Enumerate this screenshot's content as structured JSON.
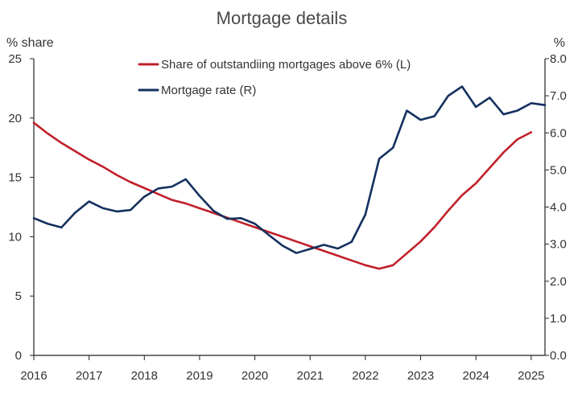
{
  "chart_data": {
    "type": "line",
    "title": "Mortgage details",
    "ylabel": "% share",
    "y2label": "%",
    "xlim": [
      2016,
      2025.25
    ],
    "ylim": [
      0,
      25
    ],
    "y2lim": [
      0,
      8
    ],
    "xticks": [
      2016,
      2017,
      2018,
      2019,
      2020,
      2021,
      2022,
      2023,
      2024,
      2025
    ],
    "yticks": [
      "0",
      "5",
      "10",
      "15",
      "20",
      "25"
    ],
    "y2ticks": [
      "0.0",
      "1.0",
      "2.0",
      "3.0",
      "4.0",
      "5.0",
      "6.0",
      "7.0",
      "8.0"
    ],
    "legend_position": "top-center",
    "series": [
      {
        "name": "Share of outstandiing mortgages above 6% (L)",
        "axis": "left",
        "color": "#c0202a",
        "x": [
          2016,
          2016.25,
          2016.5,
          2016.75,
          2017,
          2017.25,
          2017.5,
          2017.75,
          2018,
          2018.25,
          2018.5,
          2018.75,
          2019,
          2019.25,
          2019.5,
          2019.75,
          2020,
          2020.25,
          2020.5,
          2020.75,
          2021,
          2021.25,
          2021.5,
          2021.75,
          2022,
          2022.25,
          2022.5,
          2022.75,
          2023,
          2023.25,
          2023.5,
          2023.75,
          2024,
          2024.25,
          2024.5,
          2024.75,
          2025
        ],
        "values": [
          19.6,
          18.7,
          17.9,
          17.2,
          16.5,
          15.9,
          15.2,
          14.6,
          14.1,
          13.6,
          13.1,
          12.8,
          12.4,
          12.0,
          11.6,
          11.2,
          10.8,
          10.4,
          10.0,
          9.6,
          9.2,
          8.8,
          8.4,
          8.0,
          7.6,
          7.3,
          7.6,
          8.6,
          9.6,
          10.8,
          12.2,
          13.5,
          14.5,
          15.8,
          17.1,
          18.2,
          18.8
        ]
      },
      {
        "name": "Mortgage rate (R)",
        "axis": "right",
        "color": "#13305e",
        "x": [
          2016,
          2016.25,
          2016.5,
          2016.75,
          2017,
          2017.25,
          2017.5,
          2017.75,
          2018,
          2018.25,
          2018.5,
          2018.75,
          2019,
          2019.25,
          2019.5,
          2019.75,
          2020,
          2020.25,
          2020.5,
          2020.75,
          2021,
          2021.25,
          2021.5,
          2021.75,
          2022,
          2022.25,
          2022.5,
          2022.75,
          2023,
          2023.25,
          2023.5,
          2023.75,
          2024,
          2024.25,
          2024.5,
          2024.75,
          2025,
          2025.25
        ],
        "values": [
          3.7,
          3.55,
          3.45,
          3.85,
          4.15,
          3.97,
          3.88,
          3.92,
          4.28,
          4.5,
          4.55,
          4.75,
          4.3,
          3.9,
          3.68,
          3.7,
          3.55,
          3.25,
          2.96,
          2.76,
          2.87,
          2.98,
          2.88,
          3.06,
          3.8,
          5.3,
          5.6,
          6.6,
          6.35,
          6.45,
          7.0,
          7.25,
          6.7,
          6.95,
          6.5,
          6.6,
          6.8,
          6.75
        ]
      }
    ]
  }
}
